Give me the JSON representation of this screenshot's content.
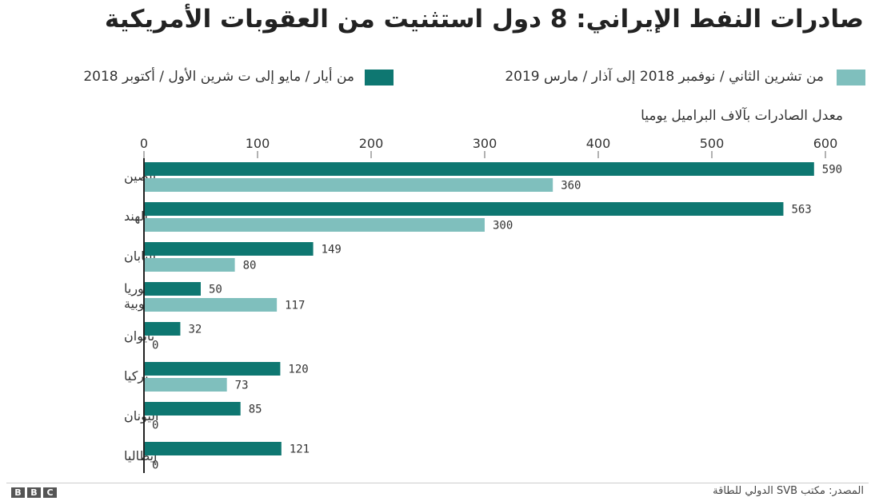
{
  "chart_data": {
    "type": "bar",
    "orientation": "horizontal",
    "title": "صادرات النفط الإيراني: 8 دول استثنيت من العقوبات الأمريكية",
    "xlabel": "معدل الصادرات بآلاف البراميل يوميا",
    "xlim": [
      0,
      600
    ],
    "xticks": [
      "0",
      "100",
      "200",
      "300",
      "400",
      "500",
      "600"
    ],
    "categories": [
      "الصين",
      "الهند",
      "اليابان",
      "كوريا الجنوبية",
      "تايوان",
      "تركيا",
      "اليونان",
      "إيطاليا"
    ],
    "series": [
      {
        "name": "من أيار / مايو إلى ت شرين الأول / أكتوبر 2018",
        "color": "#0e7771",
        "values": [
          590,
          563,
          149,
          50,
          32,
          120,
          85,
          121
        ]
      },
      {
        "name": "من تشرين الثاني / نوفمبر 2018 إلى آذار / مارس 2019",
        "color": "#7fbfbd",
        "values": [
          360,
          300,
          80,
          117,
          0,
          73,
          0,
          0
        ]
      }
    ],
    "legend_position": "top",
    "grid": false
  },
  "legend": {
    "dark_label": "من أيار / مايو إلى ت شرين الأول / أكتوبر 2018",
    "light_label": "من تشرين الثاني / نوفمبر 2018 إلى آذار / مارس 2019"
  },
  "footer": {
    "logo_letters": [
      "B",
      "B",
      "C"
    ],
    "source": "المصدر: مكتب SVB الدولي للطاقة"
  }
}
